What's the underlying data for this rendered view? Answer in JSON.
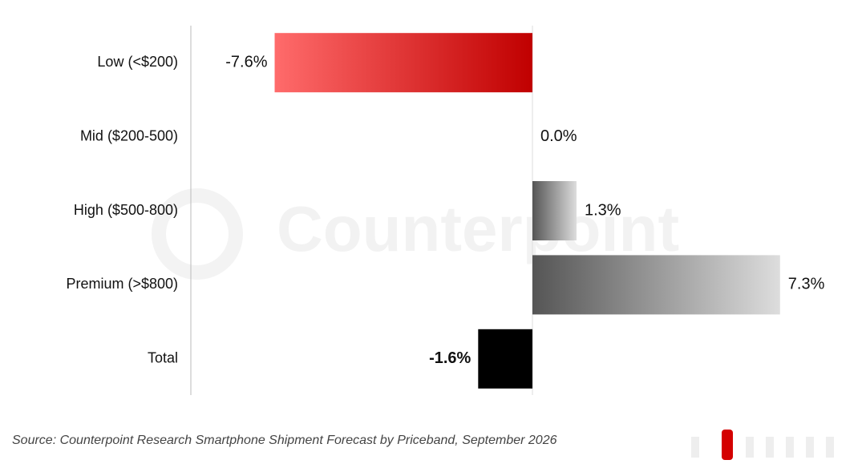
{
  "chart_data": {
    "type": "bar",
    "orientation": "horizontal",
    "categories": [
      "Low (<$200)",
      "Mid ($200-500)",
      "High ($500-800)",
      "Premium (>$800)",
      "Total"
    ],
    "values": [
      -7.6,
      0.0,
      1.3,
      7.3,
      -1.6
    ],
    "value_labels": [
      "-7.6%",
      "0.0%",
      "1.3%",
      "7.3%",
      "-1.6%"
    ],
    "colors": [
      [
        "#ff6b6b",
        "#c00000"
      ],
      [
        "#555555",
        "#555555"
      ],
      [
        "#555555",
        "#dddddd"
      ],
      [
        "#555555",
        "#dddddd"
      ],
      [
        "#000000",
        "#000000"
      ]
    ],
    "source": "Source: Counterpoint Research Smartphone Shipment Forecast by Priceband, September 2026",
    "watermark": "Counterpoint"
  }
}
